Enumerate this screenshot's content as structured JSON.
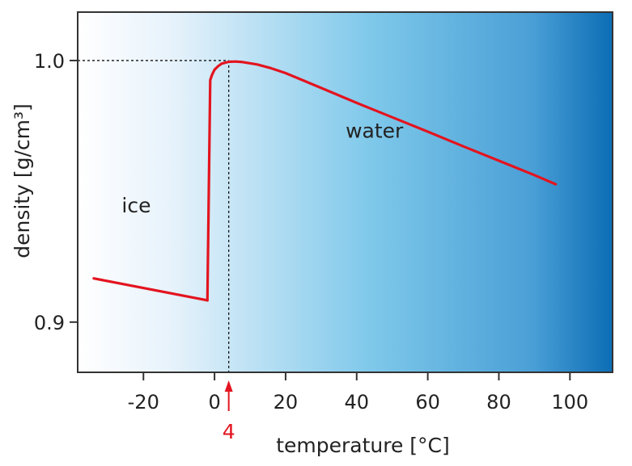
{
  "chart_data": {
    "type": "line",
    "title": "",
    "xlabel": "temperature [°C]",
    "ylabel": "density [g/cm³]",
    "xlim": [
      -38.5,
      112
    ],
    "ylim": [
      0.8808,
      1.0185
    ],
    "xticks": [
      -20,
      0,
      20,
      40,
      60,
      80,
      100
    ],
    "xtick_labels": [
      "-20",
      "0",
      "20",
      "40",
      "60",
      "80",
      "100"
    ],
    "yticks": [
      0.9,
      1.0
    ],
    "ytick_labels": [
      "0.9",
      "1.0"
    ],
    "grid": false,
    "series": [
      {
        "name": "ice",
        "x": [
          -34,
          -2
        ],
        "y": [
          0.9167,
          0.9083
        ]
      },
      {
        "name": "water",
        "x": [
          -2,
          -1.2,
          -0.7,
          0,
          1,
          2,
          4,
          6,
          8,
          12,
          16,
          20,
          30,
          40,
          50,
          60,
          70,
          80,
          90,
          96
        ],
        "y": [
          0.9083,
          0.9925,
          0.9945,
          0.9965,
          0.9978,
          0.9988,
          0.9995,
          0.9996,
          0.9994,
          0.9985,
          0.997,
          0.9952,
          0.9895,
          0.9838,
          0.9783,
          0.9728,
          0.9672,
          0.9617,
          0.9562,
          0.9527
        ]
      }
    ],
    "region_labels": [
      {
        "text": "ice",
        "x": -22,
        "y": 0.942
      },
      {
        "text": "water",
        "x": 45,
        "y": 0.9705
      }
    ],
    "reference_point": {
      "x": 4,
      "y": 1.0
    },
    "marker": {
      "label": "4",
      "x": 4
    },
    "colors": {
      "line": "#e3141f",
      "marker": "#e3141f",
      "background_left": "#ffffff",
      "background_mid": "#7ec8ea",
      "background_right": "#0c6db5",
      "axis": "#333333",
      "text": "#222222"
    }
  }
}
